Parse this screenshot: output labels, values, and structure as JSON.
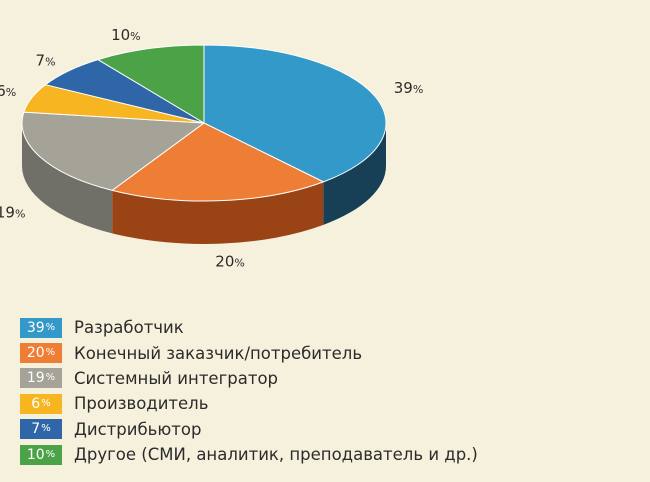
{
  "chart_data": {
    "type": "pie",
    "style": "3d",
    "categories": [
      "Разработчик",
      "Конечный заказчик/потребитель",
      "Системный интегратор",
      "Производитель",
      "Дистрибьютор",
      "Другое (СМИ, аналитик, преподаватель и др.)"
    ],
    "values": [
      39,
      20,
      19,
      6,
      7,
      10
    ],
    "value_labels": [
      "39",
      "20",
      "19",
      "6",
      "7",
      "10"
    ],
    "unit": "%",
    "colors": [
      "#3399c8",
      "#ee7d35",
      "#a5a297",
      "#f7b521",
      "#2e66a8",
      "#4ca246"
    ],
    "side_colors": [
      "#173f55",
      "#9a4314",
      "#707068",
      "#c08808",
      "#1d4270",
      "#2f6d2b"
    ],
    "legend_placement": "bottom-left",
    "title": ""
  }
}
